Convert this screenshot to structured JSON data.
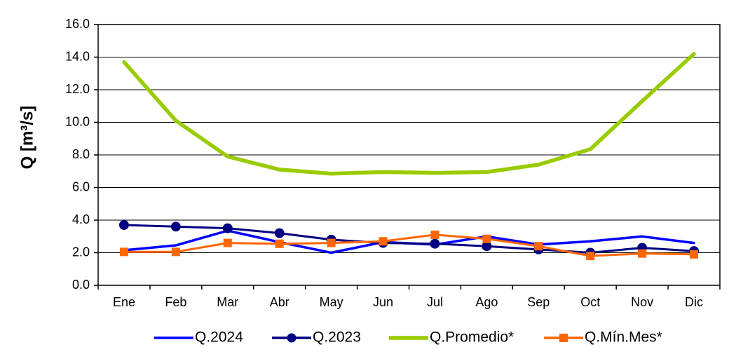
{
  "chart_data": {
    "type": "line",
    "ylabel": "Q [m³/s]",
    "ylim": [
      0,
      16
    ],
    "yticks": [
      "0.0",
      "2.0",
      "4.0",
      "6.0",
      "8.0",
      "10.0",
      "12.0",
      "14.0",
      "16.0"
    ],
    "categories": [
      "Ene",
      "Feb",
      "Mar",
      "Abr",
      "May",
      "Jun",
      "Jul",
      "Ago",
      "Sep",
      "Oct",
      "Nov",
      "Dic"
    ],
    "grid": true,
    "legend_position": "bottom",
    "series": [
      {
        "name": "Q.2024",
        "color": "#0000ff",
        "marker": "none",
        "values": [
          2.15,
          2.45,
          3.35,
          2.65,
          2.0,
          2.65,
          2.5,
          3.0,
          2.5,
          2.7,
          3.0,
          2.6
        ]
      },
      {
        "name": "Q.2023",
        "color": "#000080",
        "marker": "circle",
        "values": [
          3.7,
          3.6,
          3.5,
          3.2,
          2.8,
          2.6,
          2.55,
          2.4,
          2.2,
          2.0,
          2.3,
          2.1
        ]
      },
      {
        "name": "Q.Promedio*",
        "color": "#99cc00",
        "marker": "none",
        "values": [
          13.7,
          10.1,
          7.9,
          7.1,
          6.85,
          6.95,
          6.9,
          6.95,
          7.4,
          8.35,
          11.3,
          14.2
        ]
      },
      {
        "name": "Q.Mín.Mes*",
        "color": "#ff6600",
        "marker": "square",
        "values": [
          2.05,
          2.05,
          2.6,
          2.55,
          2.6,
          2.7,
          3.1,
          2.85,
          2.4,
          1.8,
          1.95,
          1.9
        ]
      }
    ]
  }
}
